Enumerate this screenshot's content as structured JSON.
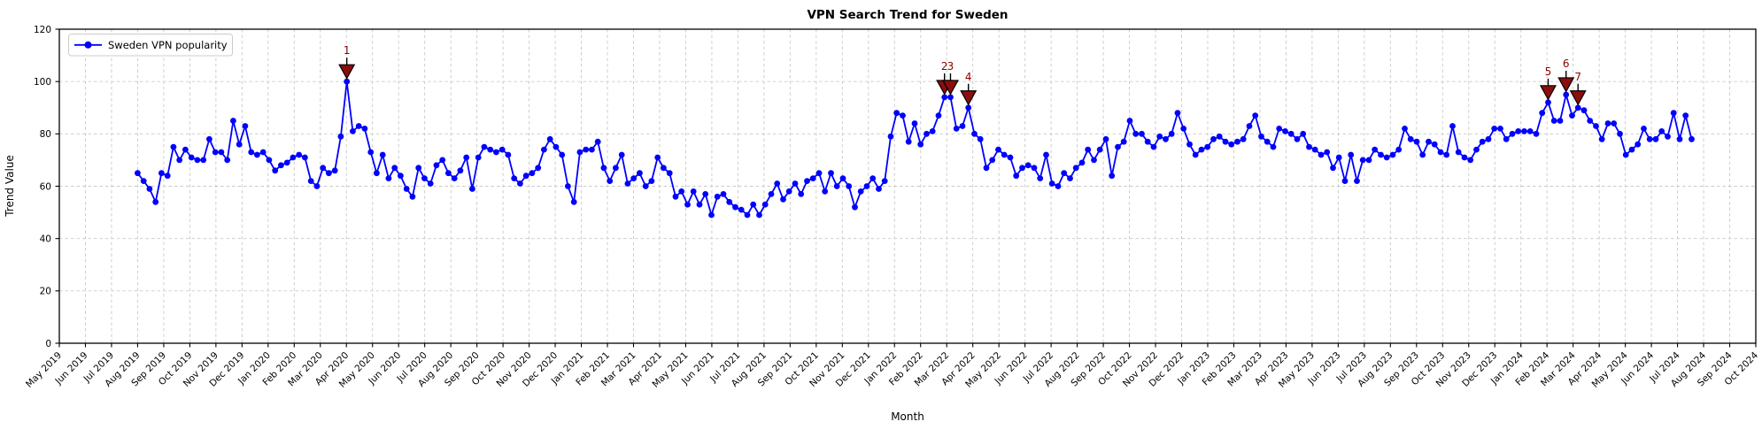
{
  "chart_data": {
    "type": "line",
    "title": "VPN Search Trend for Sweden",
    "xlabel": "Month",
    "ylabel": "Trend Value",
    "ylim": [
      0,
      120
    ],
    "yticks": [
      0,
      20,
      40,
      60,
      80,
      100,
      120
    ],
    "grid": true,
    "legend_position": "upper left",
    "x_tick_labels": [
      "May 2019",
      "Jun 2019",
      "Jul 2019",
      "Aug 2019",
      "Sep 2019",
      "Oct 2019",
      "Nov 2019",
      "Dec 2019",
      "Jan 2020",
      "Feb 2020",
      "Mar 2020",
      "Apr 2020",
      "May 2020",
      "Jun 2020",
      "Jul 2020",
      "Aug 2020",
      "Sep 2020",
      "Oct 2020",
      "Nov 2020",
      "Dec 2020",
      "Jan 2021",
      "Feb 2021",
      "Mar 2021",
      "Apr 2021",
      "May 2021",
      "Jun 2021",
      "Jul 2021",
      "Aug 2021",
      "Sep 2021",
      "Oct 2021",
      "Nov 2021",
      "Dec 2021",
      "Jan 2022",
      "Feb 2022",
      "Mar 2022",
      "Apr 2022",
      "May 2022",
      "Jun 2022",
      "Jul 2022",
      "Aug 2022",
      "Sep 2022",
      "Oct 2022",
      "Nov 2022",
      "Dec 2022",
      "Jan 2023",
      "Feb 2023",
      "Mar 2023",
      "Apr 2023",
      "May 2023",
      "Jun 2023",
      "Jul 2023",
      "Aug 2023",
      "Sep 2023",
      "Oct 2023",
      "Nov 2023",
      "Dec 2023",
      "Jan 2024",
      "Feb 2024",
      "Mar 2024",
      "Apr 2024",
      "May 2024",
      "Jun 2024",
      "Jul 2024",
      "Aug 2024",
      "Sep 2024",
      "Oct 2024"
    ],
    "series": [
      {
        "name": "Sweden VPN popularity",
        "color": "#0000ff",
        "start_month_index": 3.0,
        "week_step_months": 0.229,
        "values": [
          65,
          62,
          59,
          54,
          65,
          64,
          75,
          70,
          74,
          71,
          70,
          70,
          78,
          73,
          73,
          70,
          85,
          76,
          83,
          73,
          72,
          73,
          70,
          66,
          68,
          69,
          71,
          72,
          71,
          62,
          60,
          67,
          65,
          66,
          79,
          100,
          81,
          83,
          82,
          73,
          65,
          72,
          63,
          67,
          64,
          59,
          56,
          67,
          63,
          61,
          68,
          70,
          65,
          63,
          66,
          71,
          59,
          71,
          75,
          74,
          73,
          74,
          72,
          63,
          61,
          64,
          65,
          67,
          74,
          78,
          75,
          72,
          60,
          54,
          73,
          74,
          74,
          77,
          67,
          62,
          67,
          72,
          61,
          63,
          65,
          60,
          62,
          71,
          67,
          65,
          56,
          58,
          53,
          58,
          53,
          57,
          49,
          56,
          57,
          54,
          52,
          51,
          49,
          53,
          49,
          53,
          57,
          61,
          55,
          58,
          61,
          57,
          62,
          63,
          65,
          58,
          65,
          60,
          63,
          60,
          52,
          58,
          60,
          63,
          59,
          62,
          79,
          88,
          87,
          77,
          84,
          76,
          80,
          81,
          87,
          94,
          94,
          82,
          83,
          90,
          80,
          78,
          67,
          70,
          74,
          72,
          71,
          64,
          67,
          68,
          67,
          63,
          72,
          61,
          60,
          65,
          63,
          67,
          69,
          74,
          70,
          74,
          78,
          64,
          75,
          77,
          85,
          80,
          80,
          77,
          75,
          79,
          78,
          80,
          88,
          82,
          76,
          72,
          74,
          75,
          78,
          79,
          77,
          76,
          77,
          78,
          83,
          87,
          79,
          77,
          75,
          82,
          81,
          80,
          78,
          80,
          75,
          74,
          72,
          73,
          67,
          71,
          62,
          72,
          62,
          70,
          70,
          74,
          72,
          71,
          72,
          74,
          82,
          78,
          77,
          72,
          77,
          76,
          73,
          72,
          83,
          73,
          71,
          70,
          74,
          77,
          78,
          82,
          82,
          78,
          80,
          81,
          81,
          81,
          80,
          88,
          92,
          85,
          85,
          95,
          87,
          90,
          89,
          85,
          83,
          78,
          84,
          84,
          80,
          72,
          74,
          76,
          82,
          78,
          78,
          81,
          79,
          88,
          78,
          87,
          78
        ]
      }
    ],
    "annotations": [
      {
        "label": "1",
        "week_index": 35
      },
      {
        "label": "2",
        "week_index": 135
      },
      {
        "label": "3",
        "week_index": 136
      },
      {
        "label": "4",
        "week_index": 139
      },
      {
        "label": "5",
        "week_index": 236
      },
      {
        "label": "6",
        "week_index": 239
      },
      {
        "label": "7",
        "week_index": 241
      }
    ]
  },
  "legend": {
    "label": "Sweden VPN popularity"
  },
  "colors": {
    "line": "#0000ff",
    "marker": "#0000ff",
    "annotation_fill": "#8b0d0d",
    "annotation_text": "#8b0000",
    "annotation_edge": "#000000",
    "grid": "#c9c9c9",
    "spine": "#000000",
    "legend_border": "#cccccc",
    "background": "#ffffff"
  }
}
